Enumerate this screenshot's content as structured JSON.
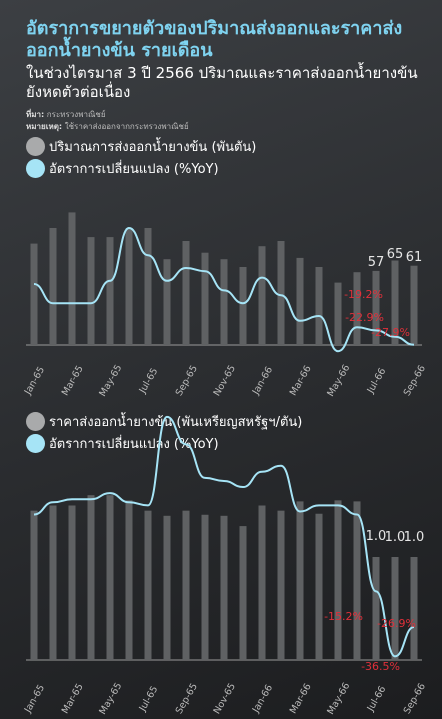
{
  "title": "อัตราการขยายตัวของปริมาณส่งออกและราคาส่งออกน้ำยางข้น รายเดือน",
  "subtitle": "ในช่วงไตรมาส 3 ปี 2566  ปริมาณและราคาส่งออกน้ำยางข้นยังหดตัวต่อเนื่อง",
  "source_label": "ที่มา:",
  "source_text": "กระทรวงพาณิชย์",
  "note_label": "หมายเหตุ:",
  "note_text": "ใช้ราคาส่งออกจากกระทรวงพาณิชย์",
  "colors": {
    "bar": "#5f6163",
    "line": "#a6e4f6",
    "neg_label": "#e0303a",
    "label": "#e6e6e6",
    "axis": "#9a9a9a"
  },
  "chart_data": [
    {
      "type": "bar",
      "legend": [
        {
          "icon": "gray-circle",
          "label": "ปริมาณการส่งออกน้ำยางข้น (พันตัน)"
        },
        {
          "icon": "blue-circle",
          "label": "อัตราการเปลี่ยนแปลง (%YoY)"
        }
      ],
      "categories": [
        "Jan-65",
        "Feb-65",
        "Mar-65",
        "Apr-65",
        "May-65",
        "Jun-65",
        "Jul-65",
        "Aug-65",
        "Sep-65",
        "Oct-65",
        "Nov-65",
        "Dec-65",
        "Jan-66",
        "Feb-66",
        "Mar-66",
        "Apr-66",
        "May-66",
        "Jun-66",
        "Jul-66",
        "Aug-66",
        "Sep-66"
      ],
      "tick_labels": [
        "Jan-65",
        "",
        "Mar-65",
        "",
        "May-65",
        "",
        "Jul-65",
        "",
        "Sep-65",
        "",
        "Nov-65",
        "",
        "Jan-66",
        "",
        "Mar-66",
        "",
        "May-66",
        "",
        "Jul-66",
        "",
        "Sep-66"
      ],
      "series": [
        {
          "name": "ปริมาณการส่งออกน้ำยางข้น (พันตัน)",
          "kind": "bar",
          "values": [
            78,
            90,
            102,
            83,
            83,
            90,
            90,
            66,
            80,
            71,
            66,
            60,
            76,
            80,
            67,
            60,
            48,
            56,
            57,
            65,
            61
          ]
        },
        {
          "name": "อัตราการเปลี่ยนแปลง (%YoY)",
          "kind": "line",
          "values": [
            10,
            -2,
            -2,
            -2,
            12,
            45,
            28,
            12,
            20,
            18,
            6,
            -2,
            14,
            3,
            -13,
            -10,
            -32,
            -17,
            -19,
            -23,
            -28
          ]
        }
      ],
      "data_labels": [
        {
          "index": 18,
          "series": 0,
          "text": "57"
        },
        {
          "index": 19,
          "series": 0,
          "text": "65"
        },
        {
          "index": 20,
          "series": 0,
          "text": "61"
        },
        {
          "index": 18,
          "series": 1,
          "text": "-19.2%"
        },
        {
          "index": 19,
          "series": 1,
          "text": "-22.9%"
        },
        {
          "index": 20,
          "series": 1,
          "text": "-27.9%"
        }
      ]
    },
    {
      "type": "bar",
      "legend": [
        {
          "icon": "gray-circle",
          "label": "ราคาส่งออกน้ำยางข้น (พันเหรียญสหรัฐฯ/ตัน)"
        },
        {
          "icon": "blue-circle",
          "label": "อัตราการเปลี่ยนแปลง (%YoY)"
        }
      ],
      "categories": [
        "Jan-65",
        "Feb-65",
        "Mar-65",
        "Apr-65",
        "May-65",
        "Jun-65",
        "Jul-65",
        "Aug-65",
        "Sep-65",
        "Oct-65",
        "Nov-65",
        "Dec-65",
        "Jan-66",
        "Feb-66",
        "Mar-66",
        "Apr-66",
        "May-66",
        "Jun-66",
        "Jul-66",
        "Aug-66",
        "Sep-66"
      ],
      "tick_labels": [
        "Jan-65",
        "",
        "Mar-65",
        "",
        "May-65",
        "",
        "Jul-65",
        "",
        "Sep-65",
        "",
        "Nov-65",
        "",
        "Jan-66",
        "",
        "Mar-66",
        "",
        "May-66",
        "",
        "Jul-66",
        "",
        "Sep-66"
      ],
      "series": [
        {
          "name": "ราคาส่งออกน้ำยางข้น (พันเหรียญสหรัฐฯ/ตัน)",
          "kind": "bar",
          "values": [
            1.45,
            1.5,
            1.5,
            1.6,
            1.6,
            1.55,
            1.45,
            1.4,
            1.45,
            1.41,
            1.4,
            1.3,
            1.5,
            1.45,
            1.54,
            1.42,
            1.55,
            1.54,
            1.0,
            1.0,
            1.0
          ]
        },
        {
          "name": "อัตราการเปลี่ยนแปลง (%YoY)",
          "kind": "line",
          "values": [
            10,
            14,
            15,
            15,
            17,
            14,
            13,
            42,
            33,
            22,
            21,
            19,
            24,
            26,
            11,
            13,
            13,
            10,
            -15.2,
            -36.5,
            -26.9
          ]
        }
      ],
      "data_labels": [
        {
          "index": 18,
          "series": 0,
          "text": "1.0"
        },
        {
          "index": 19,
          "series": 0,
          "text": "1.0"
        },
        {
          "index": 20,
          "series": 0,
          "text": "1.0"
        },
        {
          "index": 18,
          "series": 1,
          "text": "-15.2%"
        },
        {
          "index": 19,
          "series": 1,
          "text": "-36.5%"
        },
        {
          "index": 20,
          "series": 1,
          "text": "-26.9%"
        }
      ]
    }
  ]
}
